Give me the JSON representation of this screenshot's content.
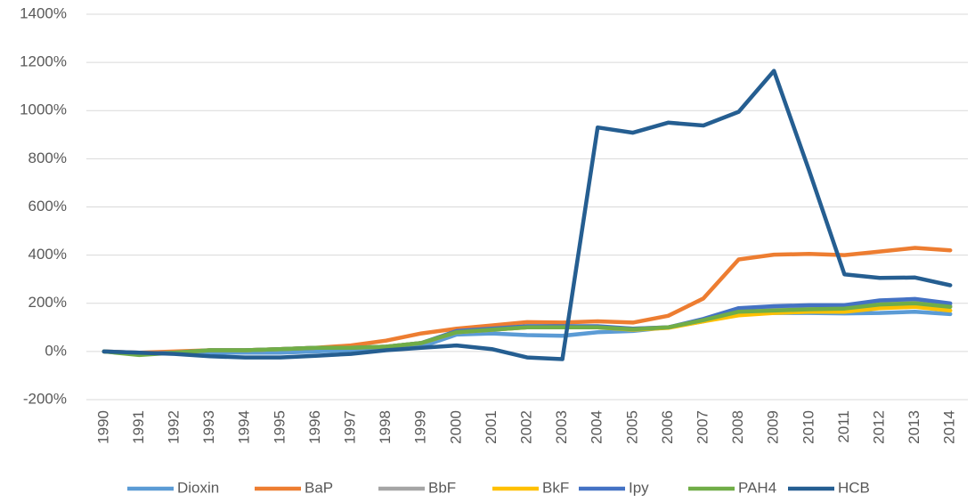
{
  "chart_data": {
    "type": "line",
    "categories": [
      "1990",
      "1991",
      "1992",
      "1993",
      "1994",
      "1995",
      "1996",
      "1997",
      "1998",
      "1999",
      "2000",
      "2001",
      "2002",
      "2003",
      "2004",
      "2005",
      "2006",
      "2007",
      "2008",
      "2009",
      "2010",
      "2011",
      "2012",
      "2013",
      "2014"
    ],
    "series": [
      {
        "name": "Dioxin",
        "color": "#5b9bd5",
        "values": [
          0,
          -5,
          -5,
          -5,
          -5,
          -5,
          0,
          5,
          10,
          20,
          70,
          75,
          68,
          65,
          80,
          85,
          100,
          125,
          160,
          160,
          160,
          158,
          160,
          165,
          155
        ]
      },
      {
        "name": "BaP",
        "color": "#ed7d31",
        "values": [
          0,
          -5,
          0,
          5,
          5,
          10,
          15,
          25,
          45,
          75,
          95,
          108,
          122,
          120,
          125,
          120,
          148,
          220,
          382,
          402,
          405,
          400,
          415,
          430,
          420
        ]
      },
      {
        "name": "BbF",
        "color": "#a5a5a5",
        "values": [
          0,
          -10,
          -5,
          5,
          5,
          10,
          15,
          15,
          20,
          35,
          80,
          90,
          100,
          100,
          100,
          95,
          100,
          130,
          170,
          175,
          180,
          180,
          200,
          205,
          190
        ]
      },
      {
        "name": "BkF",
        "color": "#ffc000",
        "values": [
          0,
          -10,
          -5,
          5,
          5,
          10,
          15,
          15,
          20,
          35,
          80,
          90,
          100,
          100,
          100,
          90,
          98,
          125,
          150,
          160,
          165,
          165,
          180,
          185,
          170
        ]
      },
      {
        "name": "Ipy",
        "color": "#4472c4",
        "values": [
          0,
          -10,
          -5,
          5,
          5,
          10,
          15,
          15,
          20,
          35,
          85,
          95,
          105,
          105,
          105,
          95,
          100,
          135,
          180,
          188,
          192,
          192,
          212,
          218,
          200
        ]
      },
      {
        "name": "PAH4",
        "color": "#70ad47",
        "values": [
          0,
          -15,
          -5,
          5,
          5,
          10,
          15,
          15,
          20,
          35,
          80,
          90,
          100,
          100,
          100,
          92,
          100,
          130,
          165,
          170,
          175,
          178,
          195,
          200,
          185
        ]
      },
      {
        "name": "HCB",
        "color": "#255e91",
        "values": [
          0,
          -5,
          -10,
          -20,
          -25,
          -25,
          -18,
          -10,
          5,
          15,
          25,
          10,
          -25,
          -32,
          930,
          908,
          950,
          938,
          995,
          1165,
          750,
          320,
          305,
          307,
          275
        ]
      }
    ],
    "ylim": [
      -200,
      1400
    ],
    "yticks": [
      {
        "value": -200,
        "label": "-200%"
      },
      {
        "value": 0,
        "label": "0%"
      },
      {
        "value": 200,
        "label": "200%"
      },
      {
        "value": 400,
        "label": "400%"
      },
      {
        "value": 600,
        "label": "600%"
      },
      {
        "value": 800,
        "label": "800%"
      },
      {
        "value": 1000,
        "label": "1000%"
      },
      {
        "value": 1200,
        "label": "1200%"
      },
      {
        "value": 1400,
        "label": "1400%"
      }
    ],
    "grid": true,
    "legend": "bottom"
  }
}
